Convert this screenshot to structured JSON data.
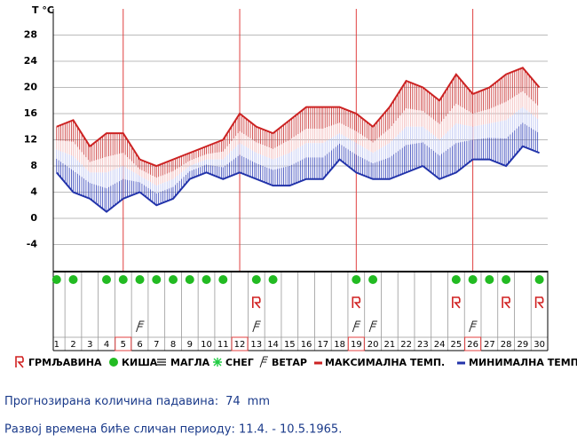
{
  "chart_data": {
    "type": "range-line",
    "y_label": "T °C",
    "x": [
      1,
      2,
      3,
      4,
      5,
      6,
      7,
      8,
      9,
      10,
      11,
      12,
      13,
      14,
      15,
      16,
      17,
      18,
      19,
      20,
      21,
      22,
      23,
      24,
      25,
      26,
      27,
      28,
      29,
      30
    ],
    "xlim": [
      0.8,
      30.5
    ],
    "ylim": [
      -8,
      32
    ],
    "yticks": [
      -4,
      0,
      4,
      8,
      12,
      16,
      20,
      24,
      28
    ],
    "grid": true,
    "highlight_days": [
      5,
      12,
      19,
      26
    ],
    "series": [
      {
        "name": "МАКСИМАЛНА ТЕМП.",
        "color": "#cc2222",
        "values": [
          14,
          15,
          11,
          13,
          13,
          9,
          8,
          9,
          10,
          11,
          12,
          16,
          14,
          13,
          15,
          17,
          17,
          17,
          16,
          14,
          17,
          21,
          20,
          18,
          22,
          19,
          20,
          22,
          23,
          20
        ]
      },
      {
        "name": "МИНИМАЛНА ТЕМП.",
        "color": "#2233aa",
        "values": [
          7,
          4,
          3,
          1,
          3,
          4,
          2,
          3,
          6,
          7,
          6,
          7,
          6,
          5,
          5,
          6,
          6,
          9,
          7,
          6,
          6,
          7,
          8,
          6,
          7,
          9,
          9,
          8,
          11,
          10
        ]
      }
    ],
    "icon_rows": [
      {
        "name": "ГРМЉАВИНА",
        "days": [
          13,
          19,
          25,
          28,
          30
        ]
      },
      {
        "name": "КИША",
        "days": [
          1,
          2,
          4,
          5,
          6,
          7,
          8,
          9,
          10,
          11,
          13,
          14,
          19,
          20,
          25,
          26,
          27,
          28,
          30
        ]
      },
      {
        "name": "МАГЛА",
        "days": []
      },
      {
        "name": "СНЕГ",
        "days": []
      },
      {
        "name": "ВЕТАР",
        "days": [
          6,
          13,
          19,
          20,
          26
        ]
      }
    ]
  },
  "footer": {
    "precipitation": {
      "label": "Прогнозирана количина падавина:",
      "value": 74,
      "unit": "mm"
    },
    "period": "Развој времена биће сличан периоду: 11.4. - 10.5.1965."
  }
}
